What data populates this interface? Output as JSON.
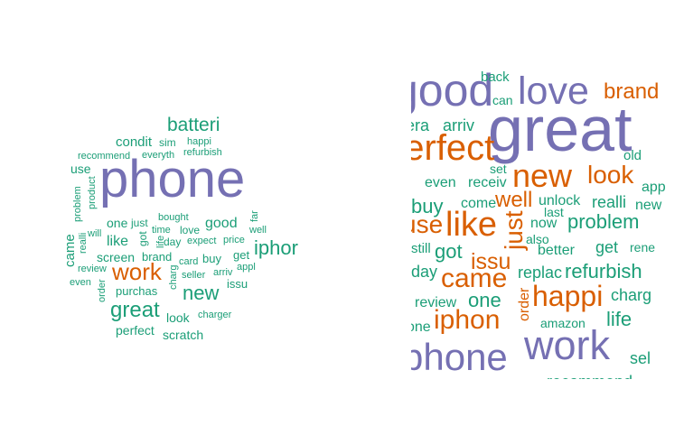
{
  "colors": {
    "purple": "#7570b3",
    "orange": "#d95f02",
    "green": "#1b9e77"
  },
  "clouds": [
    {
      "id": "left",
      "words": [
        {
          "text": "phone",
          "color": "purple"
        },
        {
          "text": "batteri",
          "color": "green"
        },
        {
          "text": "work",
          "color": "orange"
        },
        {
          "text": "iphor",
          "color": "green"
        },
        {
          "text": "great",
          "color": "green"
        },
        {
          "text": "new",
          "color": "green"
        },
        {
          "text": "condit",
          "color": "green"
        },
        {
          "text": "sim",
          "color": "green"
        },
        {
          "text": "happi",
          "color": "green"
        },
        {
          "text": "recommend",
          "color": "green"
        },
        {
          "text": "everyth",
          "color": "green"
        },
        {
          "text": "refurbish",
          "color": "green"
        },
        {
          "text": "use",
          "color": "green"
        },
        {
          "text": "problem",
          "color": "green"
        },
        {
          "text": "product",
          "color": "green"
        },
        {
          "text": "one",
          "color": "green"
        },
        {
          "text": "just",
          "color": "green"
        },
        {
          "text": "bought",
          "color": "green"
        },
        {
          "text": "good",
          "color": "green"
        },
        {
          "text": "far",
          "color": "green"
        },
        {
          "text": "came",
          "color": "green"
        },
        {
          "text": "realli",
          "color": "green"
        },
        {
          "text": "will",
          "color": "green"
        },
        {
          "text": "like",
          "color": "green"
        },
        {
          "text": "got",
          "color": "green"
        },
        {
          "text": "life",
          "color": "green"
        },
        {
          "text": "time",
          "color": "green"
        },
        {
          "text": "love",
          "color": "green"
        },
        {
          "text": "well",
          "color": "green"
        },
        {
          "text": "day",
          "color": "green"
        },
        {
          "text": "expect",
          "color": "green"
        },
        {
          "text": "price",
          "color": "green"
        },
        {
          "text": "screen",
          "color": "green"
        },
        {
          "text": "brand",
          "color": "green"
        },
        {
          "text": "card",
          "color": "green"
        },
        {
          "text": "buy",
          "color": "green"
        },
        {
          "text": "get",
          "color": "green"
        },
        {
          "text": "review",
          "color": "green"
        },
        {
          "text": "charg",
          "color": "green"
        },
        {
          "text": "arriv",
          "color": "green"
        },
        {
          "text": "appl",
          "color": "green"
        },
        {
          "text": "even",
          "color": "green"
        },
        {
          "text": "order",
          "color": "green"
        },
        {
          "text": "seller",
          "color": "green"
        },
        {
          "text": "issu",
          "color": "green"
        },
        {
          "text": "purchas",
          "color": "green"
        },
        {
          "text": "look",
          "color": "green"
        },
        {
          "text": "charger",
          "color": "green"
        },
        {
          "text": "perfect",
          "color": "green"
        },
        {
          "text": "scratch",
          "color": "green"
        }
      ]
    },
    {
      "id": "right",
      "words": [
        {
          "text": "good",
          "color": "purple"
        },
        {
          "text": "back",
          "color": "green"
        },
        {
          "text": "love",
          "color": "purple"
        },
        {
          "text": "brand",
          "color": "orange"
        },
        {
          "text": "can",
          "color": "green"
        },
        {
          "text": "camera",
          "color": "green"
        },
        {
          "text": "arriv",
          "color": "green"
        },
        {
          "text": "great",
          "color": "purple"
        },
        {
          "text": "perfect",
          "color": "orange"
        },
        {
          "text": "old",
          "color": "green"
        },
        {
          "text": "new",
          "color": "orange"
        },
        {
          "text": "look",
          "color": "orange"
        },
        {
          "text": "set",
          "color": "green"
        },
        {
          "text": "even",
          "color": "green"
        },
        {
          "text": "receiv",
          "color": "green"
        },
        {
          "text": "app",
          "color": "green"
        },
        {
          "text": "buy",
          "color": "green"
        },
        {
          "text": "come",
          "color": "green"
        },
        {
          "text": "well",
          "color": "orange"
        },
        {
          "text": "unlock",
          "color": "green"
        },
        {
          "text": "realli",
          "color": "green"
        },
        {
          "text": "new",
          "color": "green"
        },
        {
          "text": "last",
          "color": "green"
        },
        {
          "text": "use",
          "color": "orange"
        },
        {
          "text": "like",
          "color": "orange"
        },
        {
          "text": "just",
          "color": "orange"
        },
        {
          "text": "now",
          "color": "green"
        },
        {
          "text": "problem",
          "color": "green"
        },
        {
          "text": "still",
          "color": "green"
        },
        {
          "text": "got",
          "color": "green"
        },
        {
          "text": "issu",
          "color": "orange"
        },
        {
          "text": "also",
          "color": "green"
        },
        {
          "text": "get",
          "color": "green"
        },
        {
          "text": "rene",
          "color": "green"
        },
        {
          "text": "better",
          "color": "green"
        },
        {
          "text": "day",
          "color": "green"
        },
        {
          "text": "came",
          "color": "orange"
        },
        {
          "text": "replac",
          "color": "green"
        },
        {
          "text": "refurbish",
          "color": "green"
        },
        {
          "text": "review",
          "color": "green"
        },
        {
          "text": "one",
          "color": "green"
        },
        {
          "text": "order",
          "color": "orange"
        },
        {
          "text": "happi",
          "color": "orange"
        },
        {
          "text": "charg",
          "color": "green"
        },
        {
          "text": "one",
          "color": "green"
        },
        {
          "text": "iphon",
          "color": "orange"
        },
        {
          "text": "amazon",
          "color": "green"
        },
        {
          "text": "life",
          "color": "green"
        },
        {
          "text": "phone",
          "color": "purple"
        },
        {
          "text": "work",
          "color": "purple"
        },
        {
          "text": "sel",
          "color": "green"
        },
        {
          "text": "recommend",
          "color": "green"
        }
      ]
    }
  ]
}
